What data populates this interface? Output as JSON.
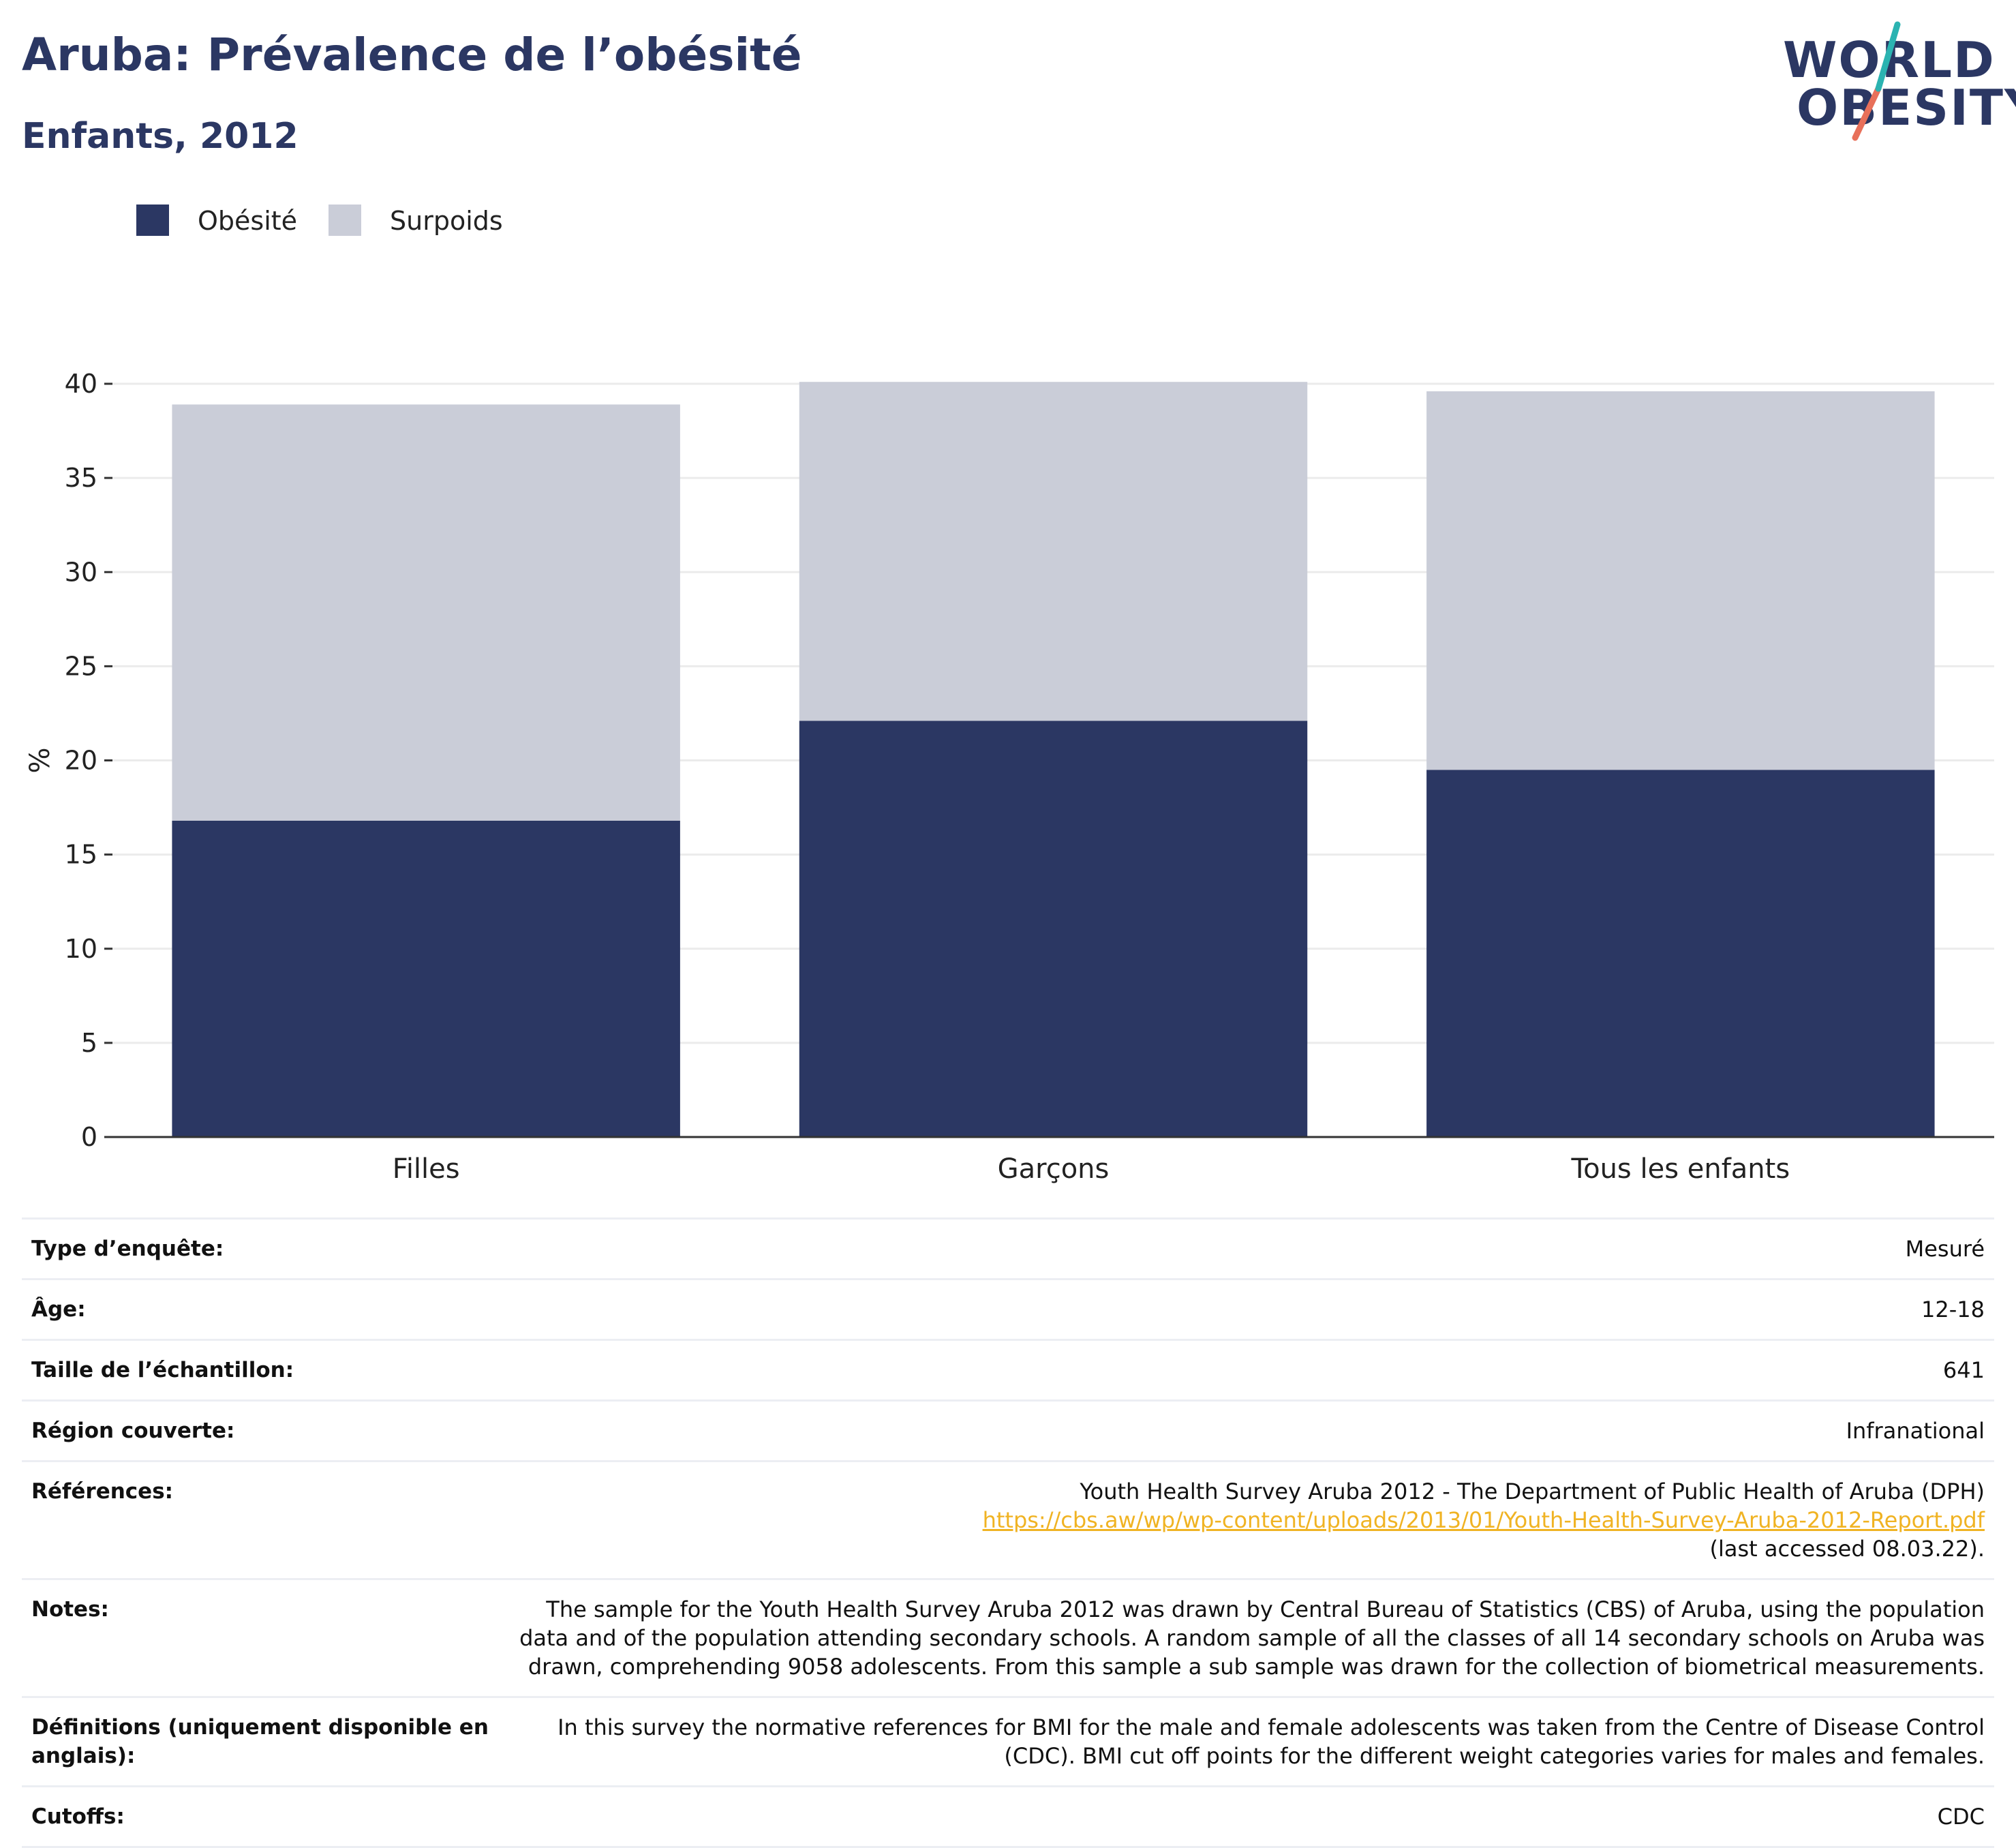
{
  "header": {
    "title": "Aruba: Prévalence de l’obésité",
    "subtitle": "Enfants, 2012"
  },
  "logo": {
    "line1": "WORLD",
    "line2": "OBESITY",
    "colors": {
      "navy": "#2b3763",
      "teal": "#2bb3b1",
      "coral": "#e8705a"
    }
  },
  "legend": [
    {
      "label": "Obésité",
      "color": "#2b3763"
    },
    {
      "label": "Surpoids",
      "color": "#cacdd8"
    }
  ],
  "chart_data": {
    "type": "bar",
    "stacked": true,
    "categories": [
      "Filles",
      "Garçons",
      "Tous les enfants"
    ],
    "series": [
      {
        "name": "Obésité",
        "values": [
          16.8,
          22.1,
          19.5
        ],
        "color": "#2b3763"
      },
      {
        "name": "Surpoids",
        "values": [
          22.1,
          18.0,
          20.1
        ],
        "color": "#cacdd8"
      }
    ],
    "ylabel": "%",
    "ylim": [
      0,
      40
    ],
    "yticks": [
      0,
      5,
      10,
      15,
      20,
      25,
      30,
      35,
      40
    ],
    "grid": true
  },
  "meta": {
    "survey_type": {
      "label": "Type d’enquête:",
      "value": "Mesuré"
    },
    "age": {
      "label": "Âge:",
      "value": "12-18"
    },
    "sample_size": {
      "label": "Taille de l’échantillon:",
      "value": "641"
    },
    "region": {
      "label": "Région couverte:",
      "value": "Infranational"
    },
    "references": {
      "label": "Références:",
      "text_before": "Youth Health Survey Aruba 2012 - The Department of Public Health of Aruba (DPH) ",
      "link": "https://cbs.aw/wp/wp-content/uploads/2013/01/Youth-Health-Survey-Aruba-2012-Report.pdf",
      "text_after": " (last accessed 08.03.22)."
    },
    "notes": {
      "label": "Notes:",
      "value": "The sample for the Youth Health Survey Aruba 2012 was drawn by Central Bureau of Statistics (CBS) of Aruba, using the population data and of the population attending secondary schools. A random sample of all the classes of all 14 secondary schools on Aruba was drawn, comprehending 9058 adolescents. From this sample a sub sample was drawn for the collection of biometrical measurements."
    },
    "definitions": {
      "label": "Définitions (uniquement disponible en anglais):",
      "value": "In this survey the normative references for BMI for the male and female adolescents was taken from the Centre of Disease Control (CDC). BMI cut off points for the different weight categories varies for males and females."
    },
    "cutoffs": {
      "label": "Cutoffs:",
      "value": "CDC"
    }
  }
}
